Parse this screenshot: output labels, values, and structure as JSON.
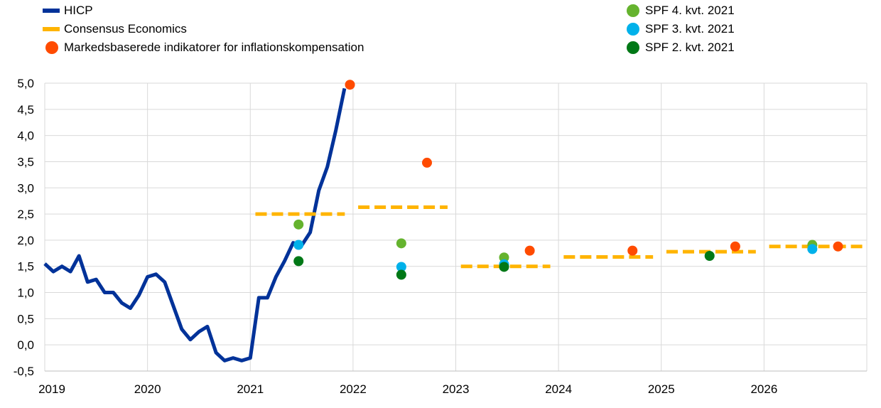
{
  "legend_left": [
    {
      "label": "HICP",
      "kind": "line",
      "color": "#003299"
    },
    {
      "label": "Consensus Economics",
      "kind": "dash",
      "color": "#FFB400"
    },
    {
      "label": "Markedsbaserede indikatorer for inflationskompensation",
      "kind": "dot",
      "color": "#FF4B00"
    }
  ],
  "legend_right": [
    {
      "label": "SPF 4. kvt. 2021",
      "kind": "dot",
      "color": "#65B32E"
    },
    {
      "label": "SPF 3. kvt. 2021",
      "kind": "dot",
      "color": "#00B1EA"
    },
    {
      "label": "SPF 2. kvt. 2021",
      "kind": "dot",
      "color": "#007816"
    }
  ],
  "chart_data": {
    "type": "line",
    "xlim": [
      2019,
      2027
    ],
    "ylim": [
      -0.5,
      5.0
    ],
    "grid": true,
    "x_ticks": [
      "2019",
      "2020",
      "2021",
      "2022",
      "2023",
      "2024",
      "2025",
      "2026"
    ],
    "y_ticks": [
      "5,0",
      "4,5",
      "4,0",
      "3,5",
      "3,0",
      "2,5",
      "2,0",
      "1,5",
      "1,0",
      "0,5",
      "0,0",
      "-0,5"
    ],
    "y_tick_values": [
      5.0,
      4.5,
      4.0,
      3.5,
      3.0,
      2.5,
      2.0,
      1.5,
      1.0,
      0.5,
      0.0,
      -0.5
    ],
    "series": [
      {
        "name": "HICP",
        "kind": "line",
        "color": "#003299",
        "x": [
          2019.0,
          2019.083,
          2019.167,
          2019.25,
          2019.333,
          2019.417,
          2019.5,
          2019.583,
          2019.667,
          2019.75,
          2019.833,
          2019.917,
          2020.0,
          2020.083,
          2020.167,
          2020.25,
          2020.333,
          2020.417,
          2020.5,
          2020.583,
          2020.667,
          2020.75,
          2020.833,
          2020.917,
          2021.0,
          2021.083,
          2021.167,
          2021.25,
          2021.333,
          2021.417,
          2021.5,
          2021.583,
          2021.667,
          2021.75,
          2021.833,
          2021.917
        ],
        "y": [
          1.55,
          1.4,
          1.5,
          1.4,
          1.7,
          1.2,
          1.25,
          1.0,
          1.0,
          0.8,
          0.7,
          0.95,
          1.3,
          1.35,
          1.2,
          0.75,
          0.3,
          0.1,
          0.25,
          0.35,
          -0.15,
          -0.3,
          -0.25,
          -0.3,
          -0.25,
          0.9,
          0.9,
          1.3,
          1.6,
          1.95,
          1.9,
          2.15,
          2.95,
          3.4,
          4.1,
          4.9
        ]
      },
      {
        "name": "Consensus Economics",
        "kind": "dash",
        "color": "#FFB400",
        "segments": [
          {
            "x": [
              2021.05,
              2021.92
            ],
            "y": 2.5
          },
          {
            "x": [
              2022.05,
              2022.92
            ],
            "y": 2.63
          },
          {
            "x": [
              2023.05,
              2023.92
            ],
            "y": 1.5
          },
          {
            "x": [
              2024.05,
              2024.92
            ],
            "y": 1.68
          },
          {
            "x": [
              2025.05,
              2025.92
            ],
            "y": 1.78
          },
          {
            "x": [
              2026.05,
              2026.98
            ],
            "y": 1.88
          }
        ]
      },
      {
        "name": "Markedsbaserede indikatorer for inflationskompensation",
        "kind": "dot",
        "color": "#FF4B00",
        "x": [
          2021.97,
          2022.72,
          2023.72,
          2024.72,
          2025.72,
          2026.72
        ],
        "y": [
          4.97,
          3.48,
          1.8,
          1.8,
          1.88,
          1.88
        ]
      },
      {
        "name": "SPF 4. kvt. 2021",
        "kind": "dot",
        "color": "#65B32E",
        "x": [
          2021.47,
          2022.47,
          2023.47,
          2026.47
        ],
        "y": [
          2.3,
          1.94,
          1.67,
          1.91
        ]
      },
      {
        "name": "SPF 3. kvt. 2021",
        "kind": "dot",
        "color": "#00B1EA",
        "x": [
          2021.47,
          2022.47,
          2023.47,
          2026.47
        ],
        "y": [
          1.91,
          1.49,
          1.54,
          1.83
        ]
      },
      {
        "name": "SPF 2. kvt. 2021",
        "kind": "dot",
        "color": "#007816",
        "x": [
          2021.47,
          2022.47,
          2023.47,
          2025.47
        ],
        "y": [
          1.6,
          1.34,
          1.49,
          1.7
        ]
      }
    ]
  }
}
